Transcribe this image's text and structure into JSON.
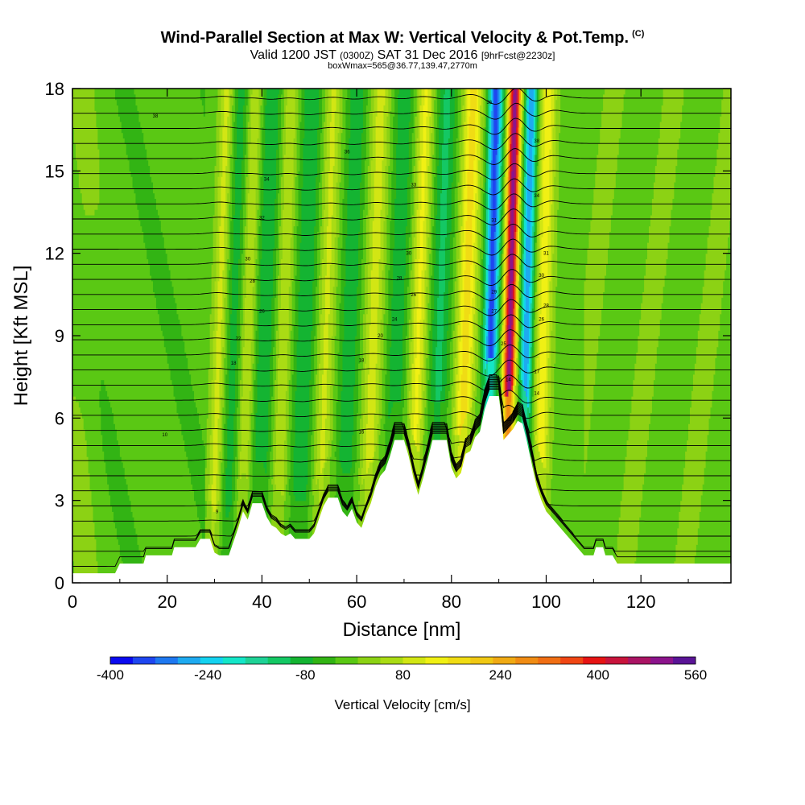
{
  "chart_data": {
    "type": "contour",
    "title": "Wind-Parallel Section at Max W: Vertical Velocity & Pot.Temp.",
    "title_mark": "(C)",
    "subtitle_pre": "Valid 1200 JST",
    "subtitle_utc": "(0300Z)",
    "subtitle_date": "SAT 31 Dec 2016",
    "subtitle_fcst": "[9hrFcst@2230z]",
    "subtitle2": "boxWmax=565@36.77,139.47,2770m",
    "xlabel": "Distance [nm]",
    "ylabel": "Height [Kft MSL]",
    "xlim": [
      0,
      139
    ],
    "ylim": [
      0,
      18
    ],
    "x_ticks": [
      0,
      20,
      40,
      60,
      80,
      100,
      120
    ],
    "y_ticks": [
      0,
      3,
      6,
      9,
      12,
      15,
      18
    ],
    "colorbar": {
      "label": "Vertical Velocity [cm/s]",
      "min": -400,
      "max": 560,
      "step": 40,
      "tick_values": [
        -400,
        -240,
        -80,
        80,
        240,
        400,
        560
      ],
      "colors": [
        "#0a0af0",
        "#1e46f0",
        "#1e78f0",
        "#1eaaf0",
        "#14d2f0",
        "#14e6c8",
        "#1ed296",
        "#14c864",
        "#14b432",
        "#32b414",
        "#5ac814",
        "#8cd214",
        "#aadc14",
        "#d2e614",
        "#f0f014",
        "#f0dc14",
        "#f0c814",
        "#f0aa14",
        "#f08c14",
        "#f06e14",
        "#f04614",
        "#e61414",
        "#c8143c",
        "#aa1464",
        "#8c148c",
        "#5a1496"
      ]
    },
    "series": [
      {
        "name": "Vertical Velocity",
        "units": "cm/s",
        "features": [
          {
            "x": 30.5,
            "w_peak": 120,
            "width_nm": 1.5
          },
          {
            "x": 33.5,
            "w_peak": -80,
            "width_nm": 2.0
          },
          {
            "x": 36.5,
            "w_peak": 110,
            "width_nm": 1.6
          },
          {
            "x": 40.0,
            "w_peak": -100,
            "width_nm": 2.2
          },
          {
            "x": 44.0,
            "w_peak": 100,
            "width_nm": 1.6
          },
          {
            "x": 48.5,
            "w_peak": -100,
            "width_nm": 2.2
          },
          {
            "x": 53.0,
            "w_peak": 110,
            "width_nm": 1.8
          },
          {
            "x": 58.0,
            "w_peak": -90,
            "width_nm": 2.2
          },
          {
            "x": 63.0,
            "w_peak": 120,
            "width_nm": 2.0
          },
          {
            "x": 68.0,
            "w_peak": -90,
            "width_nm": 2.2
          },
          {
            "x": 72.5,
            "w_peak": 150,
            "width_nm": 1.8
          },
          {
            "x": 77.0,
            "w_peak": -110,
            "width_nm": 2.2
          },
          {
            "x": 82.5,
            "w_peak": 200,
            "width_nm": 2.0
          },
          {
            "x": 88.0,
            "w_peak": -360,
            "width_nm": 1.5
          },
          {
            "x": 92.0,
            "w_peak": 560,
            "width_nm": 1.3
          },
          {
            "x": 95.5,
            "w_peak": -300,
            "width_nm": 1.3
          },
          {
            "x": 99.0,
            "w_peak": 160,
            "width_nm": 1.8
          }
        ]
      },
      {
        "name": "Pot.Temp.",
        "units": "C",
        "contour_interval": 1
      }
    ],
    "terrain_kft": [
      [
        0,
        0.35
      ],
      [
        9,
        0.35
      ],
      [
        10,
        0.7
      ],
      [
        15,
        0.7
      ],
      [
        15.5,
        1.0
      ],
      [
        21,
        1.0
      ],
      [
        21.5,
        1.3
      ],
      [
        26,
        1.3
      ],
      [
        27,
        1.6
      ],
      [
        29,
        1.6
      ],
      [
        30,
        1.1
      ],
      [
        31,
        1.0
      ],
      [
        33,
        1.0
      ],
      [
        34,
        1.5
      ],
      [
        35,
        2.0
      ],
      [
        36,
        2.6
      ],
      [
        37,
        2.3
      ],
      [
        38,
        2.9
      ],
      [
        40,
        2.9
      ],
      [
        41,
        2.4
      ],
      [
        42,
        2.1
      ],
      [
        43,
        2.0
      ],
      [
        44,
        1.8
      ],
      [
        45,
        1.7
      ],
      [
        46,
        1.8
      ],
      [
        47,
        1.6
      ],
      [
        50,
        1.6
      ],
      [
        51,
        1.8
      ],
      [
        52,
        2.3
      ],
      [
        53,
        2.8
      ],
      [
        54,
        3.1
      ],
      [
        56,
        3.1
      ],
      [
        57,
        2.6
      ],
      [
        58,
        2.4
      ],
      [
        59,
        2.7
      ],
      [
        60,
        2.2
      ],
      [
        61,
        2.0
      ],
      [
        62,
        2.5
      ],
      [
        63,
        2.9
      ],
      [
        64,
        3.5
      ],
      [
        65,
        3.9
      ],
      [
        66,
        4.1
      ],
      [
        67,
        4.6
      ],
      [
        68,
        5.2
      ],
      [
        70,
        5.2
      ],
      [
        71,
        4.6
      ],
      [
        72,
        3.8
      ],
      [
        73,
        3.2
      ],
      [
        74,
        3.8
      ],
      [
        75,
        4.5
      ],
      [
        76,
        5.2
      ],
      [
        79,
        5.2
      ],
      [
        80,
        4.2
      ],
      [
        81,
        3.8
      ],
      [
        82,
        4.0
      ],
      [
        83,
        4.7
      ],
      [
        84,
        4.8
      ],
      [
        85,
        5.3
      ],
      [
        86,
        5.5
      ],
      [
        87,
        6.3
      ],
      [
        88,
        6.8
      ],
      [
        90,
        6.8
      ],
      [
        90.5,
        6.1
      ],
      [
        91,
        5.2
      ],
      [
        92,
        5.4
      ],
      [
        93,
        5.6
      ],
      [
        94,
        5.9
      ],
      [
        95,
        5.8
      ],
      [
        96,
        5.1
      ],
      [
        97,
        4.3
      ],
      [
        98,
        3.5
      ],
      [
        99,
        3.0
      ],
      [
        100,
        2.6
      ],
      [
        101,
        2.4
      ],
      [
        102,
        2.2
      ],
      [
        103,
        2.0
      ],
      [
        104,
        1.8
      ],
      [
        105,
        1.6
      ],
      [
        106,
        1.4
      ],
      [
        107,
        1.2
      ],
      [
        108,
        1.0
      ],
      [
        110,
        1.0
      ],
      [
        110.5,
        1.3
      ],
      [
        112,
        1.3
      ],
      [
        112.5,
        1.0
      ],
      [
        114,
        1.0
      ],
      [
        115,
        0.7
      ],
      [
        139,
        0.7
      ]
    ],
    "contour_labels": [
      {
        "x": 17.5,
        "y": 17.0,
        "text": "38"
      },
      {
        "x": 58,
        "y": 15.7,
        "text": "36"
      },
      {
        "x": 41,
        "y": 14.7,
        "text": "34"
      },
      {
        "x": 72,
        "y": 14.5,
        "text": "33"
      },
      {
        "x": 98,
        "y": 16.1,
        "text": "38"
      },
      {
        "x": 98,
        "y": 14.1,
        "text": "34"
      },
      {
        "x": 88,
        "y": 17.5,
        "text": "36"
      },
      {
        "x": 40,
        "y": 13.3,
        "text": "32"
      },
      {
        "x": 37,
        "y": 11.8,
        "text": "30"
      },
      {
        "x": 71,
        "y": 12.0,
        "text": "30"
      },
      {
        "x": 89,
        "y": 13.2,
        "text": "31"
      },
      {
        "x": 100,
        "y": 12.0,
        "text": "31"
      },
      {
        "x": 99,
        "y": 11.2,
        "text": "30"
      },
      {
        "x": 38,
        "y": 11.0,
        "text": "28"
      },
      {
        "x": 69,
        "y": 11.1,
        "text": "28"
      },
      {
        "x": 72,
        "y": 10.5,
        "text": "26"
      },
      {
        "x": 89,
        "y": 10.6,
        "text": "29"
      },
      {
        "x": 100,
        "y": 10.1,
        "text": "28"
      },
      {
        "x": 40,
        "y": 9.9,
        "text": "26"
      },
      {
        "x": 68,
        "y": 9.6,
        "text": "24"
      },
      {
        "x": 89,
        "y": 9.9,
        "text": "27"
      },
      {
        "x": 99,
        "y": 9.6,
        "text": "26"
      },
      {
        "x": 35,
        "y": 8.9,
        "text": "22"
      },
      {
        "x": 65,
        "y": 9.0,
        "text": "20"
      },
      {
        "x": 91,
        "y": 8.7,
        "text": "25"
      },
      {
        "x": 34,
        "y": 8.0,
        "text": "18"
      },
      {
        "x": 61,
        "y": 8.1,
        "text": "18"
      },
      {
        "x": 98,
        "y": 7.7,
        "text": "17"
      },
      {
        "x": 90,
        "y": 7.4,
        "text": "16"
      },
      {
        "x": 92,
        "y": 7.4,
        "text": "14"
      },
      {
        "x": 98,
        "y": 6.9,
        "text": "14"
      },
      {
        "x": 61,
        "y": 5.5,
        "text": "16"
      },
      {
        "x": 19.5,
        "y": 5.4,
        "text": "10"
      },
      {
        "x": 30.5,
        "y": 2.6,
        "text": "9"
      }
    ]
  }
}
